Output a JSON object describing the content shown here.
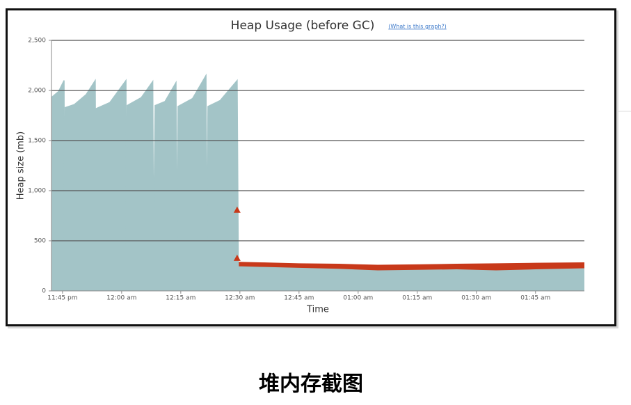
{
  "chart_data": {
    "type": "area",
    "title": "Heap Usage (before GC)",
    "help_link": "(What is this graph?)",
    "x_label": "Time",
    "y_label": "Heap size (mb)",
    "xlim": [
      -2.8,
      132.4
    ],
    "xticks": [
      {
        "value": 0,
        "label": "11:45 pm"
      },
      {
        "value": 15,
        "label": "12:00 am"
      },
      {
        "value": 30,
        "label": "12:15 am"
      },
      {
        "value": 45,
        "label": "12:30 am"
      },
      {
        "value": 60,
        "label": "12:45 am"
      },
      {
        "value": 75,
        "label": "01:00 am"
      },
      {
        "value": 90,
        "label": "01:15 am"
      },
      {
        "value": 105,
        "label": "01:30 am"
      },
      {
        "value": 120,
        "label": "01:45 am"
      }
    ],
    "ylim": [
      0,
      2500
    ],
    "yticks": [
      0,
      500,
      {
        "value": 1000,
        "label": "1,000"
      },
      {
        "value": 1500,
        "label": "1,500"
      },
      {
        "value": 2000,
        "label": "2,000"
      },
      {
        "value": 2500,
        "label": "2,500"
      }
    ],
    "grid": true,
    "series": [
      {
        "color": "#c8391a",
        "x": [
          44.6,
          50,
          60,
          70,
          80,
          90,
          100,
          110,
          120,
          132.4
        ],
        "values": [
          285,
          280,
          270,
          265,
          255,
          260,
          265,
          270,
          275,
          280
        ]
      },
      {
        "color": "#a3c4c7",
        "x": [
          -2.8,
          -1,
          0.4,
          0.5,
          0.7,
          3,
          6,
          8.3,
          8.5,
          8.6,
          12,
          16.1,
          16.2,
          16.4,
          20,
          22.9,
          23.1,
          23.5,
          26,
          28.8,
          29,
          29.3,
          33,
          36.4,
          36.6,
          36.9,
          40,
          44.3,
          44.6,
          50,
          60,
          70,
          80,
          90,
          100,
          110,
          120,
          132.4
        ],
        "values": [
          1930,
          1990,
          2100,
          420,
          1830,
          1860,
          1960,
          2100,
          380,
          1820,
          1880,
          2100,
          430,
          1850,
          1930,
          2090,
          500,
          1850,
          1890,
          2080,
          430,
          1840,
          1920,
          2150,
          430,
          1840,
          1900,
          2100,
          240,
          235,
          225,
          215,
          200,
          205,
          210,
          200,
          210,
          220
        ]
      }
    ],
    "markers": {
      "color": "#c8391a",
      "x": [
        44.3,
        44.3
      ],
      "values": [
        800,
        320
      ]
    },
    "caption": "堆内存截图"
  }
}
